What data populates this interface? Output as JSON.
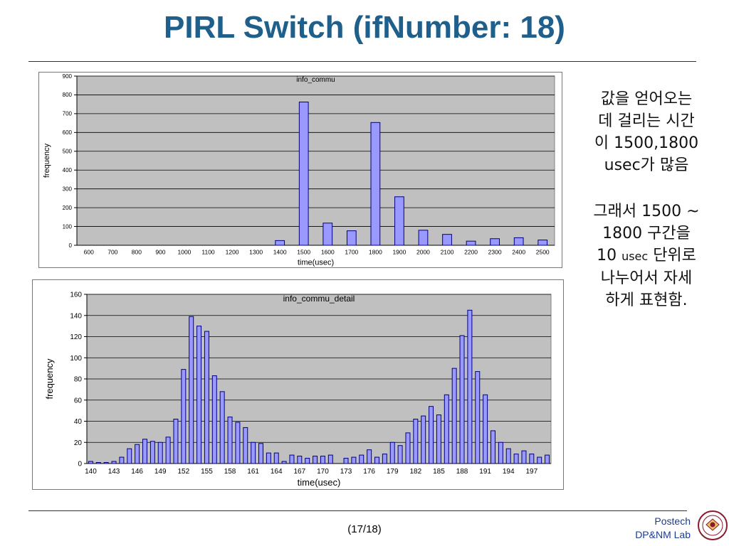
{
  "slide": {
    "title": "PIRL Switch (ifNumber: 18)",
    "note1": [
      "값을 얻어오는",
      "데 걸리는 시간",
      "이 1500,1800",
      "usec가 많음"
    ],
    "note2_lines": [
      {
        "a": "그래서 1500 ~",
        "b": ""
      },
      {
        "a": "1800 구간을",
        "b": ""
      },
      {
        "a": "10 ",
        "small": "usec",
        "b": " 단위로"
      },
      {
        "a": "나누어서 자세",
        "b": ""
      },
      {
        "a": "하게 표현함.",
        "b": ""
      }
    ],
    "page_number": "(17/18)",
    "lab_line1": "Postech",
    "lab_line2": "DP&NM Lab",
    "seal_icon": "postech-university-seal-icon",
    "seal_text": "POHANG UNIVERSITY OF SCIENCE AND TECHNOLOGY 1986"
  },
  "colors": {
    "title": "#1f5f8b",
    "plot_bg": "#c0c0c0",
    "bar_fill": "#9999ff",
    "bar_stroke": "#000080"
  },
  "chart_data": [
    {
      "type": "bar",
      "title": "info_commu",
      "xlabel": "time(usec)",
      "ylabel": "frequency",
      "ylim": [
        0,
        900
      ],
      "yticks": [
        0,
        100,
        200,
        300,
        400,
        500,
        600,
        700,
        800,
        900
      ],
      "grid": true,
      "categories": [
        "600",
        "700",
        "800",
        "900",
        "1000",
        "1100",
        "1200",
        "1300",
        "1400",
        "1500",
        "1600",
        "1700",
        "1800",
        "1900",
        "2000",
        "2100",
        "2200",
        "2300",
        "2400",
        "2500"
      ],
      "values": [
        0,
        0,
        0,
        0,
        0,
        0,
        0,
        0,
        25,
        762,
        118,
        77,
        653,
        258,
        80,
        58,
        22,
        35,
        40,
        28
      ]
    },
    {
      "type": "bar",
      "title": "info_commu_detail",
      "xlabel": "time(usec)",
      "ylabel": "frequency",
      "ylim": [
        0,
        160
      ],
      "yticks": [
        0,
        20,
        40,
        60,
        80,
        100,
        120,
        140,
        160
      ],
      "grid": true,
      "categories": [
        "140",
        "141",
        "142",
        "143",
        "144",
        "145",
        "146",
        "147",
        "148",
        "149",
        "150",
        "151",
        "152",
        "153",
        "154",
        "155",
        "156",
        "157",
        "158",
        "159",
        "160",
        "161",
        "162",
        "163",
        "164",
        "165",
        "166",
        "167",
        "168",
        "169",
        "170",
        "171",
        "172",
        "173",
        "174",
        "175",
        "176",
        "177",
        "178",
        "179",
        "180",
        "181",
        "182",
        "183",
        "184",
        "185",
        "186",
        "187",
        "188",
        "189",
        "190",
        "191",
        "192",
        "193",
        "194",
        "195",
        "196",
        "197",
        "198",
        "199"
      ],
      "tick_labels": [
        "140",
        "143",
        "146",
        "149",
        "152",
        "155",
        "158",
        "161",
        "164",
        "167",
        "170",
        "173",
        "176",
        "179",
        "182",
        "185",
        "188",
        "191",
        "194",
        "197"
      ],
      "values": [
        2,
        1,
        1,
        2,
        6,
        14,
        18,
        23,
        21,
        20,
        25,
        42,
        89,
        139,
        130,
        125,
        83,
        68,
        44,
        39,
        34,
        20,
        19,
        10,
        10,
        2,
        8,
        7,
        5,
        7,
        7,
        8,
        0,
        5,
        6,
        8,
        13,
        6,
        9,
        20,
        17,
        29,
        42,
        45,
        54,
        46,
        65,
        90,
        121,
        145,
        87,
        65,
        31,
        20,
        14,
        9,
        12,
        9,
        6,
        8
      ]
    }
  ]
}
